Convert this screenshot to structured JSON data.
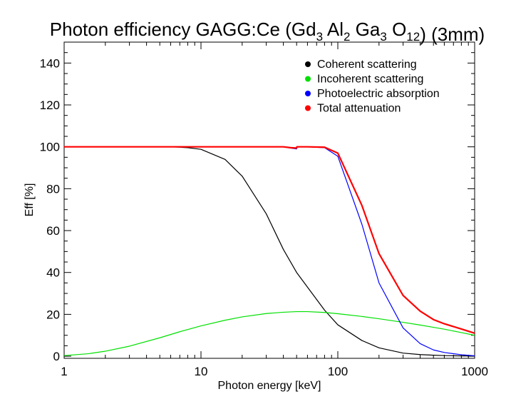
{
  "chart_data": {
    "type": "line",
    "title": {
      "prefix": "Photon efficiency GAGG:Ce (Gd",
      "parts": [
        {
          "text": "Gd",
          "sub": "3"
        },
        {
          "text": " Al",
          "sub": "2"
        },
        {
          "text": " Ga",
          "sub": "3"
        },
        {
          "text": " O",
          "sub": "12"
        }
      ],
      "suffix": ") (3mm)"
    },
    "xlabel": "Photon energy [keV]",
    "ylabel": "Eff [%]",
    "xscale": "log",
    "xlim": [
      1,
      1000
    ],
    "ylim": [
      -1,
      150
    ],
    "xticks": [
      1,
      10,
      100,
      1000
    ],
    "xtick_labels": [
      "1",
      "10",
      "100",
      "1000"
    ],
    "yticks": [
      0,
      20,
      40,
      60,
      80,
      100,
      120,
      140
    ],
    "ytick_labels": [
      "0",
      "20",
      "40",
      "60",
      "80",
      "100",
      "120",
      "140"
    ],
    "grid": false,
    "legend_position": "top-right",
    "series": [
      {
        "name": "Coherent scattering",
        "color": "#000000",
        "x": [
          1,
          5,
          6,
          8,
          10,
          15,
          20,
          30,
          40,
          50,
          60,
          80,
          100,
          150,
          200,
          300,
          400,
          500,
          600,
          800,
          1000
        ],
        "y": [
          100,
          100,
          100,
          99.6,
          98.8,
          94,
          86,
          68,
          51,
          40,
          33,
          22,
          15,
          7.5,
          4,
          1.5,
          0.8,
          0.5,
          0.3,
          0.15,
          0.1
        ]
      },
      {
        "name": "Incoherent scattering",
        "color": "#00e000",
        "x": [
          1,
          1.5,
          2,
          3,
          5,
          7,
          10,
          15,
          20,
          30,
          40,
          50,
          60,
          80,
          100,
          150,
          200,
          300,
          400,
          500,
          600,
          800,
          1000
        ],
        "y": [
          0.3,
          1.2,
          2.4,
          4.8,
          8.8,
          11.7,
          14.5,
          17.2,
          18.8,
          20.4,
          21,
          21.3,
          21.3,
          20.9,
          20.3,
          19,
          17.9,
          16.2,
          14.9,
          13.8,
          12.9,
          11.3,
          10
        ]
      },
      {
        "name": "Photoelectric absorption",
        "color": "#0000ff",
        "x": [
          1,
          10,
          30,
          40,
          45,
          50,
          50.2,
          60,
          80,
          100,
          150,
          200,
          300,
          400,
          500,
          600,
          800,
          1000
        ],
        "y": [
          100,
          100,
          100,
          100,
          99.4,
          99,
          100,
          100,
          99.6,
          95.5,
          63,
          35,
          13.5,
          6,
          3,
          1.8,
          0.7,
          0.2
        ]
      },
      {
        "name": "Total attenuation",
        "color": "#ff0000",
        "x": [
          1,
          10,
          30,
          40,
          45,
          50,
          50.2,
          60,
          80,
          100,
          150,
          200,
          300,
          400,
          500,
          600,
          800,
          1000
        ],
        "y": [
          100,
          100,
          100,
          100,
          99.6,
          99.4,
          100,
          100,
          99.8,
          97,
          72,
          49,
          29,
          21.5,
          17.5,
          15.5,
          13,
          11
        ]
      }
    ]
  }
}
